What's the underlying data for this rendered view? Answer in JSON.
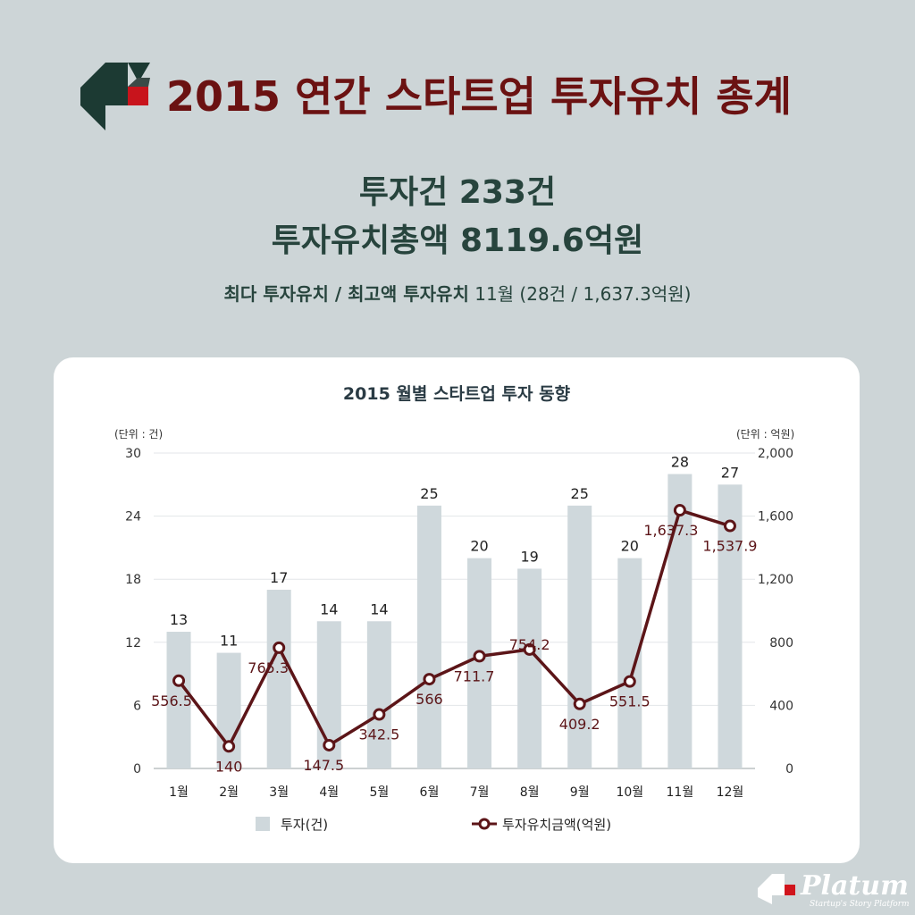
{
  "header": {
    "title": "2015 연간 스타트업 투자유치 총계"
  },
  "summary": {
    "line1": "투자건 233건",
    "line2": "투자유치총액 8119.6억원",
    "line3_bold": "최다 투자유치 / 최고액 투자유치",
    "line3_light": " 11월 (28건 / 1,637.3억원)"
  },
  "footer": {
    "brand": "Platum",
    "tagline": "Startup's Story Platform"
  },
  "colors": {
    "title": "#6b1212",
    "bar": "#cfd8dc",
    "line": "#5c1518",
    "text": "#27443d"
  },
  "chart_data": {
    "type": "bar",
    "title": "2015 월별 스타트업 투자 동향",
    "categories": [
      "1월",
      "2월",
      "3월",
      "4월",
      "5월",
      "6월",
      "7월",
      "8월",
      "9월",
      "10월",
      "11월",
      "12월"
    ],
    "left_axis": {
      "unit_label": "(단위 : 건)",
      "ylim": [
        0,
        30
      ],
      "ticks": [
        "0",
        "6",
        "12",
        "18",
        "24",
        "30"
      ]
    },
    "right_axis": {
      "unit_label": "(단위 : 억원)",
      "ylim": [
        0,
        2000
      ],
      "ticks": [
        "0",
        "400",
        "800",
        "1,200",
        "1,600",
        "2,000"
      ]
    },
    "series": [
      {
        "name": "투자(건)",
        "type": "bar",
        "axis": "left",
        "values": [
          13,
          11,
          17,
          14,
          14,
          25,
          20,
          19,
          25,
          20,
          28,
          27
        ],
        "labels": [
          "13",
          "11",
          "17",
          "14",
          "14",
          "25",
          "20",
          "19",
          "25",
          "20",
          "28",
          "27"
        ]
      },
      {
        "name": "투자유치금액(억원)",
        "type": "line",
        "axis": "right",
        "values": [
          556.5,
          140,
          765.3,
          147.5,
          342.5,
          566,
          711.7,
          754.2,
          409.2,
          551.5,
          1637.3,
          1537.9
        ],
        "labels": [
          "556.5",
          "140",
          "765.3",
          "147.5",
          "342.5",
          "566",
          "711.7",
          "754.2",
          "409.2",
          "551.5",
          "1,637.3",
          "1,537.9"
        ]
      }
    ],
    "grid": true,
    "legend": "bottom"
  }
}
